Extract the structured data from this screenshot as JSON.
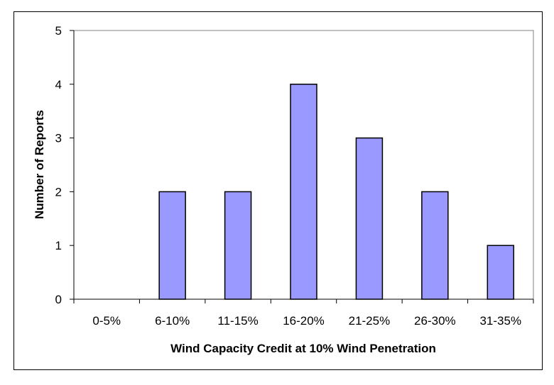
{
  "chart_data": {
    "type": "bar",
    "categories": [
      "0-5%",
      "6-10%",
      "11-15%",
      "16-20%",
      "21-25%",
      "26-30%",
      "31-35%"
    ],
    "values": [
      0,
      2,
      2,
      4,
      3,
      2,
      1
    ],
    "title": "",
    "xlabel": "Wind Capacity Credit at 10% Wind Penetration",
    "ylabel": "Number of Reports",
    "ylim": [
      0,
      5
    ],
    "yticks": [
      0,
      1,
      2,
      3,
      4,
      5
    ],
    "grid": false,
    "legend": "none",
    "colors": {
      "bar_fill": "#9999ff",
      "bar_stroke": "#000000",
      "axis": "#000000",
      "plot_border": "#808080"
    }
  }
}
